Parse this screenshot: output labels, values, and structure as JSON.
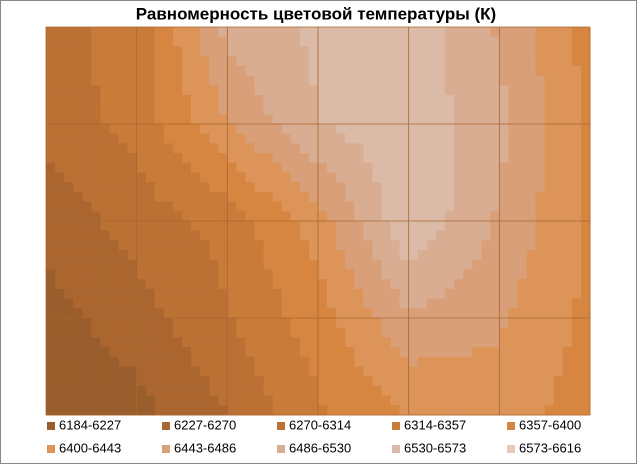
{
  "chart_data": {
    "type": "contour",
    "title": "Равномерность цветовой температуры (К)",
    "levels": [
      6184,
      6227,
      6270,
      6314,
      6357,
      6400,
      6443,
      6486,
      6530,
      6573,
      6616
    ],
    "series": [
      {
        "name": "6184-6227",
        "color": "#9a5d2c"
      },
      {
        "name": "6227-6270",
        "color": "#ab6630"
      },
      {
        "name": "6270-6314",
        "color": "#bb7034"
      },
      {
        "name": "6314-6357",
        "color": "#c97b3a"
      },
      {
        "name": "6357-6400",
        "color": "#d78641"
      },
      {
        "name": "6400-6443",
        "color": "#dc9458"
      },
      {
        "name": "6443-6486",
        "color": "#d99f78"
      },
      {
        "name": "6486-6530",
        "color": "#d9ad92"
      },
      {
        "name": "6530-6573",
        "color": "#dbbba8"
      },
      {
        "name": "6573-6616",
        "color": "#e6c9b8"
      }
    ],
    "z": [
      [
        6300,
        6330,
        6500,
        6540,
        6560,
        6480,
        6380
      ],
      [
        6290,
        6330,
        6440,
        6530,
        6560,
        6500,
        6390
      ],
      [
        6240,
        6290,
        6330,
        6420,
        6570,
        6480,
        6390
      ],
      [
        6210,
        6250,
        6310,
        6380,
        6480,
        6450,
        6390
      ],
      [
        6190,
        6210,
        6270,
        6350,
        6400,
        6420,
        6380
      ]
    ]
  }
}
